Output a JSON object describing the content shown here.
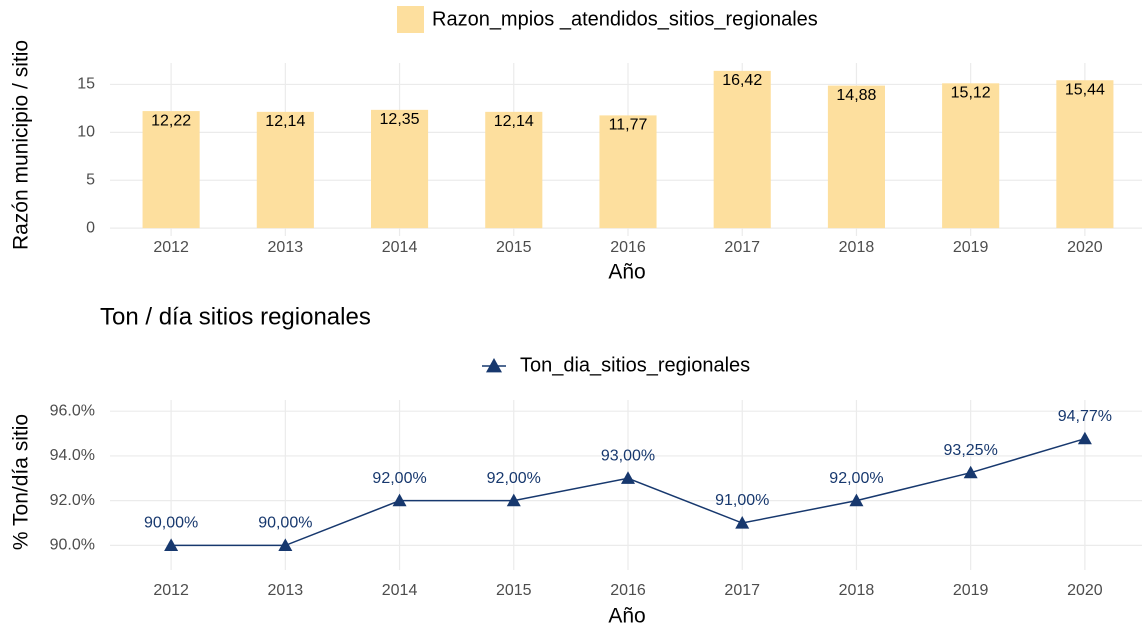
{
  "chart_data": [
    {
      "type": "bar",
      "legend": "Razon_mpios _atendidos_sitios_regionales",
      "ylabel": "Razón municipio / sitio",
      "xlabel": "Año",
      "color": "#fddf9e",
      "categories": [
        "2012",
        "2013",
        "2014",
        "2015",
        "2016",
        "2017",
        "2018",
        "2019",
        "2020"
      ],
      "values": [
        12.22,
        12.14,
        12.35,
        12.14,
        11.77,
        16.42,
        14.88,
        15.12,
        15.44
      ],
      "value_labels": [
        "12,22",
        "12,14",
        "12,35",
        "12,14",
        "11,77",
        "16,42",
        "14,88",
        "15,12",
        "15,44"
      ],
      "ylim": [
        -0.82,
        17.24
      ],
      "yticks": [
        0,
        5,
        10,
        15
      ],
      "grid": true
    },
    {
      "type": "line",
      "title": "Ton / día sitios regionales",
      "legend": "Ton_dia_sitios_regionales",
      "ylabel": "% Ton/día sitio",
      "xlabel": "Año",
      "color": "#17386e",
      "categories": [
        "2012",
        "2013",
        "2014",
        "2015",
        "2016",
        "2017",
        "2018",
        "2019",
        "2020"
      ],
      "values": [
        90,
        90,
        92,
        92,
        93,
        91,
        92,
        93.25,
        94.77
      ],
      "value_labels": [
        "90,00%",
        "90,00%",
        "92,00%",
        "92,00%",
        "93,00%",
        "91,00%",
        "92,00%",
        "93,25%",
        "94,77%"
      ],
      "ylim": [
        88.9,
        96.5
      ],
      "yticks": [
        {
          "value": 90,
          "label": "90.0%"
        },
        {
          "value": 92,
          "label": "92.0%"
        },
        {
          "value": 94,
          "label": "94.0%"
        },
        {
          "value": 96,
          "label": "96.0%"
        }
      ],
      "grid": true
    }
  ]
}
